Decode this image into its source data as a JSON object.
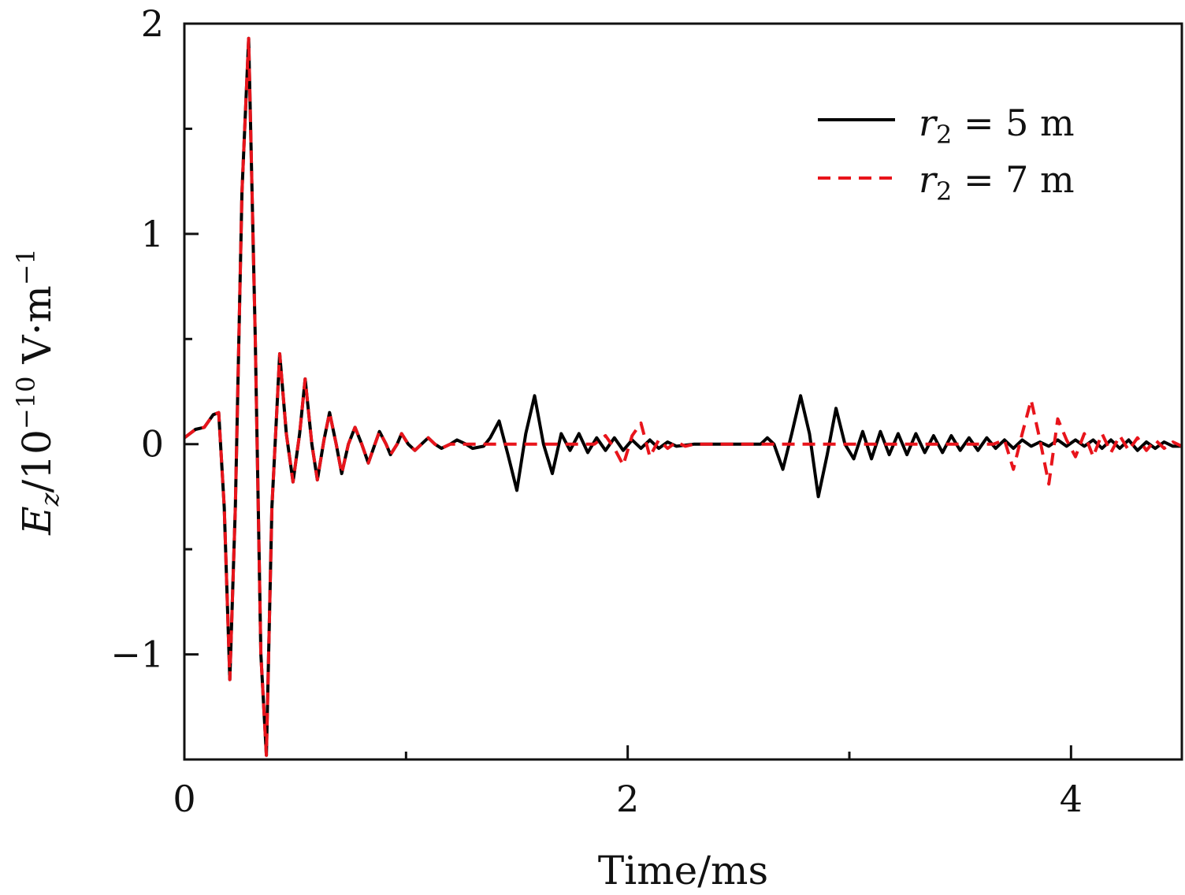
{
  "chart_data": {
    "type": "line",
    "title": "",
    "xlabel": "Time/ms",
    "ylabel_main": "E",
    "ylabel_sub": "z",
    "ylabel_unit": "/10",
    "ylabel_exp": "−10",
    "ylabel_unit2": " V·m",
    "ylabel_exp2": "−1",
    "xlim": [
      0,
      4.5
    ],
    "ylim": [
      -1.5,
      2.0
    ],
    "xticks": [
      0,
      2,
      4
    ],
    "xtick_labels": [
      "0",
      "2",
      "4"
    ],
    "xminor": [
      1,
      3
    ],
    "yticks": [
      -1,
      0,
      1,
      2
    ],
    "ytick_labels": [
      "−1",
      "0",
      "1",
      "2"
    ],
    "yminor": [
      -0.5,
      0.5,
      1.5
    ],
    "grid": false,
    "legend_position": "top-right",
    "series": [
      {
        "name_var": "r",
        "name_sub": "2",
        "name_rest": " = 5 m",
        "color": "#000000",
        "style": "solid",
        "points": [
          [
            0.0,
            0.03
          ],
          [
            0.05,
            0.07
          ],
          [
            0.09,
            0.08
          ],
          [
            0.13,
            0.14
          ],
          [
            0.155,
            0.15
          ],
          [
            0.18,
            -0.3
          ],
          [
            0.205,
            -1.12
          ],
          [
            0.23,
            -0.3
          ],
          [
            0.26,
            1.2
          ],
          [
            0.29,
            1.93
          ],
          [
            0.32,
            0.5
          ],
          [
            0.345,
            -1.0
          ],
          [
            0.37,
            -1.48
          ],
          [
            0.395,
            -0.3
          ],
          [
            0.43,
            0.43
          ],
          [
            0.46,
            0.05
          ],
          [
            0.49,
            -0.18
          ],
          [
            0.52,
            0.05
          ],
          [
            0.545,
            0.31
          ],
          [
            0.575,
            0.0
          ],
          [
            0.6,
            -0.17
          ],
          [
            0.63,
            0.02
          ],
          [
            0.655,
            0.15
          ],
          [
            0.685,
            0.0
          ],
          [
            0.71,
            -0.14
          ],
          [
            0.74,
            0.0
          ],
          [
            0.77,
            0.08
          ],
          [
            0.8,
            0.0
          ],
          [
            0.83,
            -0.09
          ],
          [
            0.86,
            0.0
          ],
          [
            0.88,
            0.06
          ],
          [
            0.91,
            0.0
          ],
          [
            0.93,
            -0.05
          ],
          [
            0.96,
            0.0
          ],
          [
            0.98,
            0.05
          ],
          [
            1.01,
            0.0
          ],
          [
            1.04,
            -0.03
          ],
          [
            1.07,
            0.0
          ],
          [
            1.1,
            0.03
          ],
          [
            1.13,
            0.0
          ],
          [
            1.16,
            -0.02
          ],
          [
            1.2,
            0.0
          ],
          [
            1.23,
            0.02
          ],
          [
            1.27,
            0.0
          ],
          [
            1.3,
            -0.02
          ],
          [
            1.35,
            -0.01
          ],
          [
            1.38,
            0.03
          ],
          [
            1.42,
            0.11
          ],
          [
            1.46,
            -0.05
          ],
          [
            1.5,
            -0.22
          ],
          [
            1.54,
            0.05
          ],
          [
            1.58,
            0.23
          ],
          [
            1.62,
            0.0
          ],
          [
            1.66,
            -0.14
          ],
          [
            1.7,
            0.05
          ],
          [
            1.74,
            -0.03
          ],
          [
            1.78,
            0.05
          ],
          [
            1.82,
            -0.04
          ],
          [
            1.86,
            0.03
          ],
          [
            1.9,
            -0.03
          ],
          [
            1.94,
            0.03
          ],
          [
            1.98,
            -0.03
          ],
          [
            2.02,
            0.02
          ],
          [
            2.06,
            -0.02
          ],
          [
            2.1,
            0.02
          ],
          [
            2.14,
            -0.02
          ],
          [
            2.18,
            0.01
          ],
          [
            2.22,
            -0.01
          ],
          [
            2.3,
            0.0
          ],
          [
            2.4,
            0.0
          ],
          [
            2.5,
            0.0
          ],
          [
            2.6,
            0.0
          ],
          [
            2.63,
            0.03
          ],
          [
            2.66,
            0.0
          ],
          [
            2.7,
            -0.12
          ],
          [
            2.74,
            0.05
          ],
          [
            2.78,
            0.23
          ],
          [
            2.82,
            0.05
          ],
          [
            2.86,
            -0.25
          ],
          [
            2.9,
            -0.05
          ],
          [
            2.94,
            0.17
          ],
          [
            2.98,
            0.0
          ],
          [
            3.02,
            -0.07
          ],
          [
            3.06,
            0.06
          ],
          [
            3.1,
            -0.07
          ],
          [
            3.14,
            0.06
          ],
          [
            3.18,
            -0.05
          ],
          [
            3.22,
            0.05
          ],
          [
            3.26,
            -0.05
          ],
          [
            3.3,
            0.05
          ],
          [
            3.34,
            -0.04
          ],
          [
            3.38,
            0.04
          ],
          [
            3.42,
            -0.04
          ],
          [
            3.46,
            0.04
          ],
          [
            3.5,
            -0.03
          ],
          [
            3.54,
            0.03
          ],
          [
            3.58,
            -0.03
          ],
          [
            3.62,
            0.03
          ],
          [
            3.66,
            -0.02
          ],
          [
            3.7,
            0.02
          ],
          [
            3.74,
            -0.02
          ],
          [
            3.78,
            0.02
          ],
          [
            3.82,
            -0.01
          ],
          [
            3.86,
            0.01
          ],
          [
            3.9,
            -0.01
          ],
          [
            3.94,
            0.02
          ],
          [
            3.98,
            -0.01
          ],
          [
            4.02,
            0.02
          ],
          [
            4.06,
            -0.01
          ],
          [
            4.1,
            0.02
          ],
          [
            4.14,
            -0.02
          ],
          [
            4.18,
            0.02
          ],
          [
            4.22,
            -0.02
          ],
          [
            4.26,
            0.02
          ],
          [
            4.3,
            -0.03
          ],
          [
            4.34,
            0.01
          ],
          [
            4.38,
            -0.02
          ],
          [
            4.42,
            0.01
          ],
          [
            4.46,
            -0.01
          ],
          [
            4.5,
            -0.01
          ]
        ]
      },
      {
        "name_var": "r",
        "name_sub": "2",
        "name_rest": " = 7 m",
        "color": "#e8141b",
        "style": "dashed",
        "points": [
          [
            0.0,
            0.03
          ],
          [
            0.05,
            0.07
          ],
          [
            0.09,
            0.08
          ],
          [
            0.13,
            0.14
          ],
          [
            0.155,
            0.15
          ],
          [
            0.18,
            -0.3
          ],
          [
            0.205,
            -1.12
          ],
          [
            0.23,
            -0.3
          ],
          [
            0.26,
            1.2
          ],
          [
            0.29,
            1.93
          ],
          [
            0.32,
            0.5
          ],
          [
            0.345,
            -1.0
          ],
          [
            0.37,
            -1.48
          ],
          [
            0.395,
            -0.3
          ],
          [
            0.43,
            0.43
          ],
          [
            0.46,
            0.05
          ],
          [
            0.49,
            -0.18
          ],
          [
            0.52,
            0.05
          ],
          [
            0.545,
            0.31
          ],
          [
            0.575,
            0.0
          ],
          [
            0.6,
            -0.17
          ],
          [
            0.63,
            0.02
          ],
          [
            0.655,
            0.15
          ],
          [
            0.685,
            0.0
          ],
          [
            0.71,
            -0.14
          ],
          [
            0.74,
            0.0
          ],
          [
            0.77,
            0.08
          ],
          [
            0.8,
            0.0
          ],
          [
            0.83,
            -0.09
          ],
          [
            0.86,
            0.0
          ],
          [
            0.88,
            0.06
          ],
          [
            0.91,
            0.0
          ],
          [
            0.93,
            -0.05
          ],
          [
            0.96,
            0.0
          ],
          [
            0.98,
            0.05
          ],
          [
            1.01,
            0.0
          ],
          [
            1.04,
            -0.03
          ],
          [
            1.07,
            0.0
          ],
          [
            1.1,
            0.03
          ],
          [
            1.13,
            0.0
          ],
          [
            1.16,
            -0.02
          ],
          [
            1.2,
            0.0
          ],
          [
            1.3,
            0.0
          ],
          [
            1.4,
            0.0
          ],
          [
            1.5,
            0.0
          ],
          [
            1.6,
            0.0
          ],
          [
            1.7,
            0.0
          ],
          [
            1.8,
            0.0
          ],
          [
            1.85,
            0.0
          ],
          [
            1.9,
            0.04
          ],
          [
            1.94,
            -0.02
          ],
          [
            1.98,
            -0.1
          ],
          [
            2.02,
            0.04
          ],
          [
            2.06,
            0.1
          ],
          [
            2.1,
            -0.06
          ],
          [
            2.14,
            0.02
          ],
          [
            2.18,
            -0.02
          ],
          [
            2.22,
            0.01
          ],
          [
            2.26,
            -0.01
          ],
          [
            2.3,
            0.0
          ],
          [
            2.4,
            0.0
          ],
          [
            2.6,
            0.0
          ],
          [
            2.8,
            0.0
          ],
          [
            3.0,
            0.0
          ],
          [
            3.2,
            0.0
          ],
          [
            3.4,
            0.0
          ],
          [
            3.6,
            0.0
          ],
          [
            3.65,
            0.0
          ],
          [
            3.7,
            0.02
          ],
          [
            3.74,
            -0.12
          ],
          [
            3.78,
            0.05
          ],
          [
            3.82,
            0.21
          ],
          [
            3.86,
            0.02
          ],
          [
            3.9,
            -0.19
          ],
          [
            3.94,
            0.12
          ],
          [
            3.98,
            0.02
          ],
          [
            4.02,
            -0.06
          ],
          [
            4.06,
            0.05
          ],
          [
            4.1,
            -0.06
          ],
          [
            4.14,
            0.05
          ],
          [
            4.18,
            -0.04
          ],
          [
            4.22,
            0.04
          ],
          [
            4.26,
            -0.03
          ],
          [
            4.3,
            0.03
          ],
          [
            4.34,
            -0.03
          ],
          [
            4.38,
            0.02
          ],
          [
            4.42,
            -0.02
          ],
          [
            4.46,
            0.01
          ],
          [
            4.5,
            -0.01
          ]
        ]
      }
    ]
  }
}
